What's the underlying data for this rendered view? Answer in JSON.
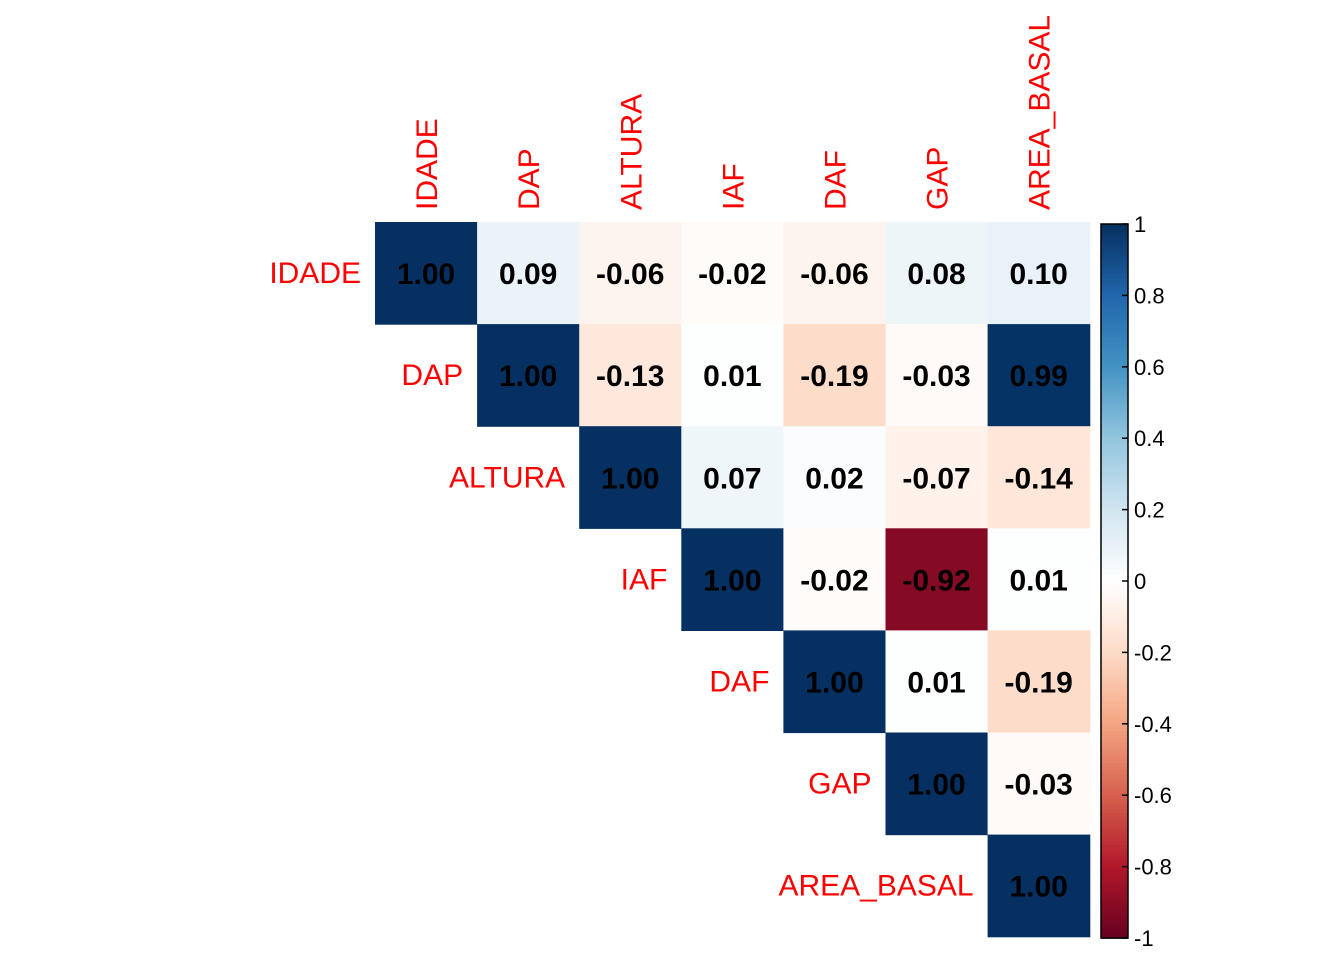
{
  "chart_data": {
    "type": "heatmap",
    "variables": [
      "IDADE",
      "DAP",
      "ALTURA",
      "IAF",
      "DAF",
      "GAP",
      "AREA_BASAL"
    ],
    "upper_triangle": [
      [
        "1.00",
        "0.09",
        "-0.06",
        "-0.02",
        "-0.06",
        "0.08",
        "0.10"
      ],
      [
        "1.00",
        "-0.13",
        "0.01",
        "-0.19",
        "-0.03",
        "0.99"
      ],
      [
        "1.00",
        "0.07",
        "0.02",
        "-0.07",
        "-0.14"
      ],
      [
        "1.00",
        "-0.02",
        "-0.92",
        "0.01"
      ],
      [
        "1.00",
        "0.01",
        "-0.19"
      ],
      [
        "1.00",
        "-0.03"
      ],
      [
        "1.00"
      ]
    ],
    "colorbar": {
      "ticks": [
        "1",
        "0.8",
        "0.6",
        "0.4",
        "0.2",
        "0",
        "-0.2",
        "-0.4",
        "-0.6",
        "-0.8",
        "-1"
      ],
      "range": [
        -1,
        1
      ],
      "colors": {
        "negative_end": "#67001F",
        "neutral": "#FFFFFF",
        "positive_end": "#053061"
      }
    },
    "label_color": "#FF0000",
    "title": "",
    "xlabel": "",
    "ylabel": ""
  }
}
